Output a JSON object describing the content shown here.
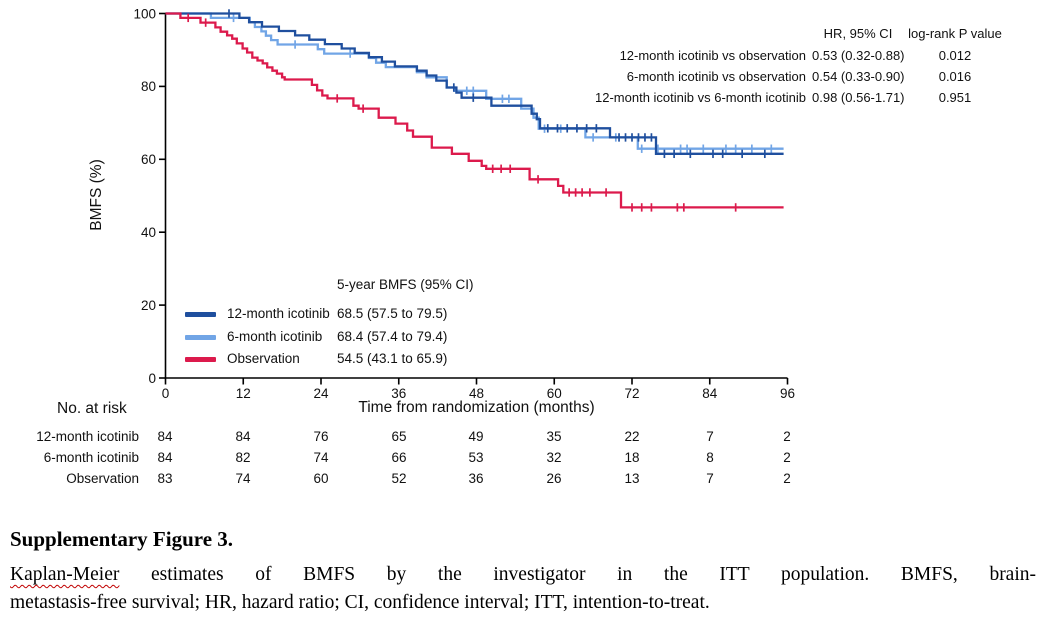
{
  "chart_data": {
    "type": "line",
    "subtype": "kaplan-meier-step",
    "xlabel": "Time from randomization (months)",
    "ylabel": "BMFS (%)",
    "xlim": [
      0,
      96
    ],
    "ylim": [
      0,
      100
    ],
    "xticks": [
      0,
      12,
      24,
      36,
      48,
      60,
      72,
      84,
      96
    ],
    "yticks": [
      0,
      20,
      40,
      60,
      80,
      100
    ],
    "curve_end_month": 95.4,
    "grid": false,
    "series": [
      {
        "name": "12-month icotinib",
        "color": "#1f4f9e",
        "steps": [
          [
            0,
            100
          ],
          [
            11.4,
            98.8
          ],
          [
            12.9,
            97.6
          ],
          [
            14.9,
            96.4
          ],
          [
            17.5,
            95.2
          ],
          [
            20,
            94.0
          ],
          [
            22.2,
            92.8
          ],
          [
            24.6,
            91.6
          ],
          [
            27.2,
            90.4
          ],
          [
            29.2,
            89.2
          ],
          [
            31.4,
            88.0
          ],
          [
            33.4,
            86.8
          ],
          [
            35.4,
            85.5
          ],
          [
            38.8,
            84.3
          ],
          [
            40.3,
            83.0
          ],
          [
            41.8,
            81.6
          ],
          [
            43.4,
            79.7
          ],
          [
            44.9,
            78.3
          ],
          [
            45.7,
            76.9
          ],
          [
            50.3,
            74.7
          ],
          [
            56.5,
            72.5
          ],
          [
            57.3,
            71.0
          ],
          [
            57.8,
            68.5
          ],
          [
            68.6,
            66.0
          ],
          [
            75.7,
            61.5
          ]
        ],
        "censor_months": [
          9.8,
          44.5,
          47.5,
          59,
          60.5,
          62,
          63.5,
          65,
          66.5,
          70,
          71,
          72,
          73,
          74,
          75,
          77,
          78.5,
          81,
          84.5,
          86,
          89,
          92.5
        ]
      },
      {
        "name": "6-month icotinib",
        "color": "#71a5e6",
        "steps": [
          [
            0,
            100
          ],
          [
            7,
            98.8
          ],
          [
            13,
            97.6
          ],
          [
            13.8,
            96.3
          ],
          [
            14.8,
            95.1
          ],
          [
            15.5,
            93.9
          ],
          [
            16.3,
            92.7
          ],
          [
            17.3,
            91.5
          ],
          [
            23.5,
            90.2
          ],
          [
            24.5,
            89.0
          ],
          [
            31.4,
            87.8
          ],
          [
            32.5,
            86.5
          ],
          [
            34,
            85.3
          ],
          [
            38.8,
            83.9
          ],
          [
            40.3,
            82.5
          ],
          [
            43.4,
            79.7
          ],
          [
            44.6,
            78.8
          ],
          [
            49.5,
            76.6
          ],
          [
            54.9,
            73.9
          ],
          [
            56.8,
            71.4
          ],
          [
            57.6,
            68.4
          ],
          [
            64.8,
            66.0
          ],
          [
            72.9,
            62.9
          ]
        ],
        "censor_months": [
          10.5,
          20,
          28.5,
          46.5,
          47.5,
          52,
          53,
          58.5,
          61,
          66,
          69.5,
          73.5,
          76,
          79.5,
          80.5,
          83,
          86.5,
          88,
          90.5,
          93.5
        ]
      },
      {
        "name": "Observation",
        "color": "#dc1a4c",
        "steps": [
          [
            0,
            100
          ],
          [
            2.3,
            98.8
          ],
          [
            5.4,
            97.5
          ],
          [
            7.7,
            96.2
          ],
          [
            8.5,
            95.0
          ],
          [
            9.5,
            94.0
          ],
          [
            10.3,
            93.1
          ],
          [
            11,
            91.8
          ],
          [
            11.9,
            90.4
          ],
          [
            12.6,
            89.3
          ],
          [
            13.4,
            87.9
          ],
          [
            14.2,
            87.1
          ],
          [
            15,
            86.3
          ],
          [
            15.7,
            85.2
          ],
          [
            16.5,
            84.3
          ],
          [
            17.2,
            83.5
          ],
          [
            18,
            82.5
          ],
          [
            18.4,
            81.9
          ],
          [
            22.6,
            80.4
          ],
          [
            23.4,
            78.9
          ],
          [
            24.2,
            77.5
          ],
          [
            25,
            76.7
          ],
          [
            29,
            74.7
          ],
          [
            29.8,
            73.9
          ],
          [
            32.9,
            71.4
          ],
          [
            35.5,
            69.8
          ],
          [
            37.3,
            67.9
          ],
          [
            38.2,
            66.2
          ],
          [
            41.1,
            63.2
          ],
          [
            44.2,
            61.5
          ],
          [
            46.8,
            59.6
          ],
          [
            48.8,
            58.2
          ],
          [
            49.5,
            57.4
          ],
          [
            56.2,
            54.5
          ],
          [
            60.6,
            52.7
          ],
          [
            61.4,
            50.9
          ],
          [
            70.3,
            46.8
          ]
        ],
        "censor_months": [
          3.5,
          6.2,
          26.5,
          30.5,
          50.5,
          51.8,
          53.2,
          57.5,
          62.3,
          63.3,
          64.3,
          65.5,
          68,
          72,
          73.5,
          75,
          79,
          80,
          88
        ]
      }
    ],
    "hr_table": {
      "col_headers": [
        "HR, 95% CI",
        "log-rank P value"
      ],
      "rows": [
        {
          "label": "12-month icotinib vs observation",
          "hr": "0.53 (0.32-0.88)",
          "p": "0.012"
        },
        {
          "label": "6-month icotinib vs observation",
          "hr": "0.54 (0.33-0.90)",
          "p": "0.016"
        },
        {
          "label": "12-month icotinib vs 6-month icotinib",
          "hr": "0.98 (0.56-1.71)",
          "p": "0.951"
        }
      ]
    },
    "legend": {
      "title": "5-year BMFS (95% CI)",
      "rows": [
        {
          "name": "12-month icotinib",
          "value": "68.5 (57.5 to 79.5)"
        },
        {
          "name": "6-month icotinib",
          "value": "68.4 (57.4 to 79.4)"
        },
        {
          "name": "Observation",
          "value": "54.5 (43.1 to 65.9)"
        }
      ]
    },
    "risk_table": {
      "title": "No. at risk",
      "rows": [
        {
          "label": "12-month icotinib",
          "counts": [
            "84",
            "84",
            "76",
            "65",
            "49",
            "35",
            "22",
            "7",
            "2"
          ]
        },
        {
          "label": "6-month icotinib",
          "counts": [
            "84",
            "82",
            "74",
            "66",
            "53",
            "32",
            "18",
            "8",
            "2"
          ]
        },
        {
          "label": "Observation",
          "counts": [
            "83",
            "74",
            "60",
            "52",
            "36",
            "26",
            "13",
            "7",
            "2"
          ]
        }
      ]
    }
  },
  "caption": {
    "heading": "Supplementary Figure 3.",
    "line1_underlined": "Kaplan-Meier",
    "line1_rest": " estimates of BMFS by the investigator in the ITT population. BMFS, brain-",
    "line2": "metastasis-free survival; HR, hazard ratio; CI, confidence interval; ITT, intention-to-treat."
  }
}
